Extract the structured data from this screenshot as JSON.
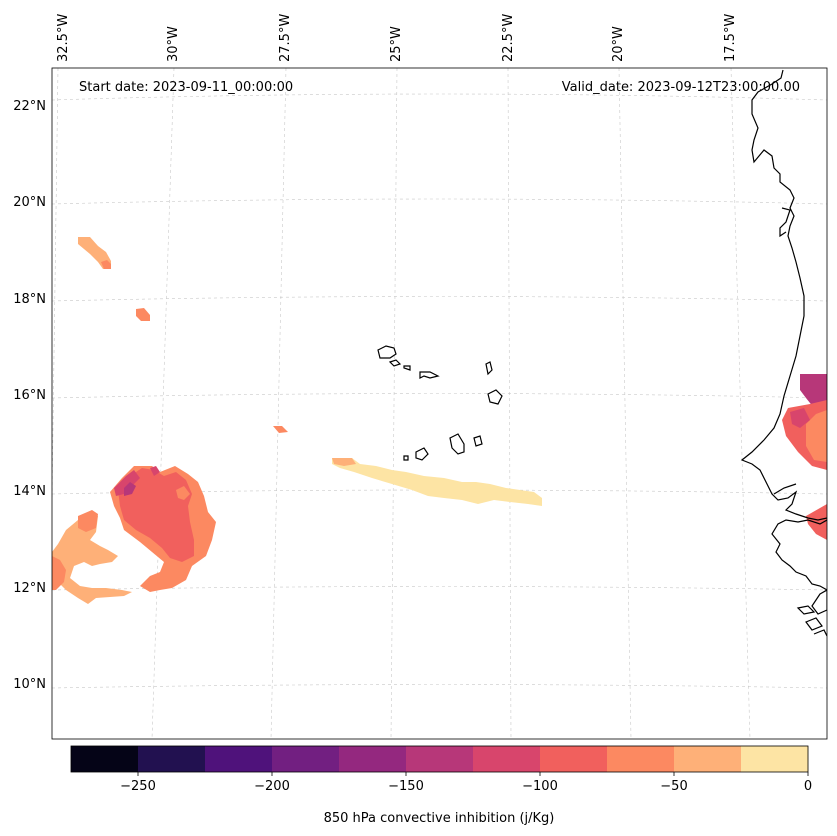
{
  "header": {
    "start_date": "Start date: 2023-09-11_00:00:00",
    "valid_date": "Valid_date: 2023-09-12T23:00:00.00"
  },
  "axes": {
    "lon_labels": [
      "32.5°W",
      "30°W",
      "27.5°W",
      "25°W",
      "22.5°W",
      "20°W",
      "17.5°W"
    ],
    "lat_labels": [
      "22°N",
      "20°N",
      "18°N",
      "16°N",
      "14°N",
      "12°N",
      "10°N"
    ]
  },
  "colorbar": {
    "label": "850 hPa convective inhibition (j/Kg)",
    "ticks": [
      "−250",
      "−200",
      "−150",
      "−100",
      "−50",
      "0"
    ],
    "bins": [
      -275,
      -250,
      -225,
      -200,
      -175,
      -150,
      -125,
      -100,
      -75,
      -50,
      -25,
      0
    ],
    "colors": [
      "#050417",
      "#221150",
      "#4f127b",
      "#721f81",
      "#94287f",
      "#b73779",
      "#d8456c",
      "#f1605d",
      "#fc8961",
      "#feb078",
      "#fde4a4"
    ]
  },
  "chart_data": {
    "type": "heatmap",
    "variable": "850 hPa convective inhibition",
    "units": "j/Kg",
    "start_date": "2023-09-11_00:00:00",
    "valid_date": "2023-09-12T23:00:00.00",
    "lon_range": [
      -32.5,
      -17.5
    ],
    "lat_range": [
      10,
      22
    ],
    "colorbar_range": [
      -275,
      0
    ],
    "features": [
      {
        "region": "west cluster near 31-28W, 12-14.5N",
        "value_range": [
          -150,
          -25
        ]
      },
      {
        "region": "small patch near 31.5W, 19N",
        "value_range": [
          -75,
          -50
        ]
      },
      {
        "region": "small patch near 30W, 17.6N",
        "value_range": [
          -100,
          -75
        ]
      },
      {
        "region": "band near 25-21W, 13.7-14.5N",
        "value_range": [
          -25,
          0
        ]
      },
      {
        "region": "African coast near 15N",
        "value_range": [
          -150,
          -75
        ]
      }
    ]
  }
}
